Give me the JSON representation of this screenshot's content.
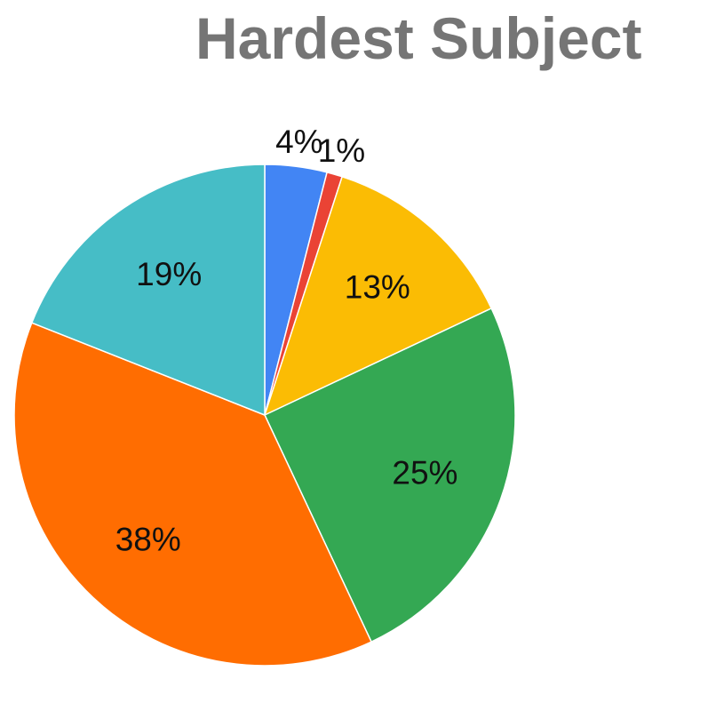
{
  "chart_data": {
    "type": "pie",
    "title": "Hardest Subject",
    "slices": [
      {
        "label": "4%",
        "value": 4,
        "color": "#4285f4"
      },
      {
        "label": "1%",
        "value": 1,
        "color": "#ea4335"
      },
      {
        "label": "13%",
        "value": 13,
        "color": "#fbbc04"
      },
      {
        "label": "25%",
        "value": 25,
        "color": "#34a853"
      },
      {
        "label": "38%",
        "value": 38,
        "color": "#ff6d01"
      },
      {
        "label": "19%",
        "value": 19,
        "color": "#46bdc6"
      }
    ],
    "legend": "none"
  }
}
